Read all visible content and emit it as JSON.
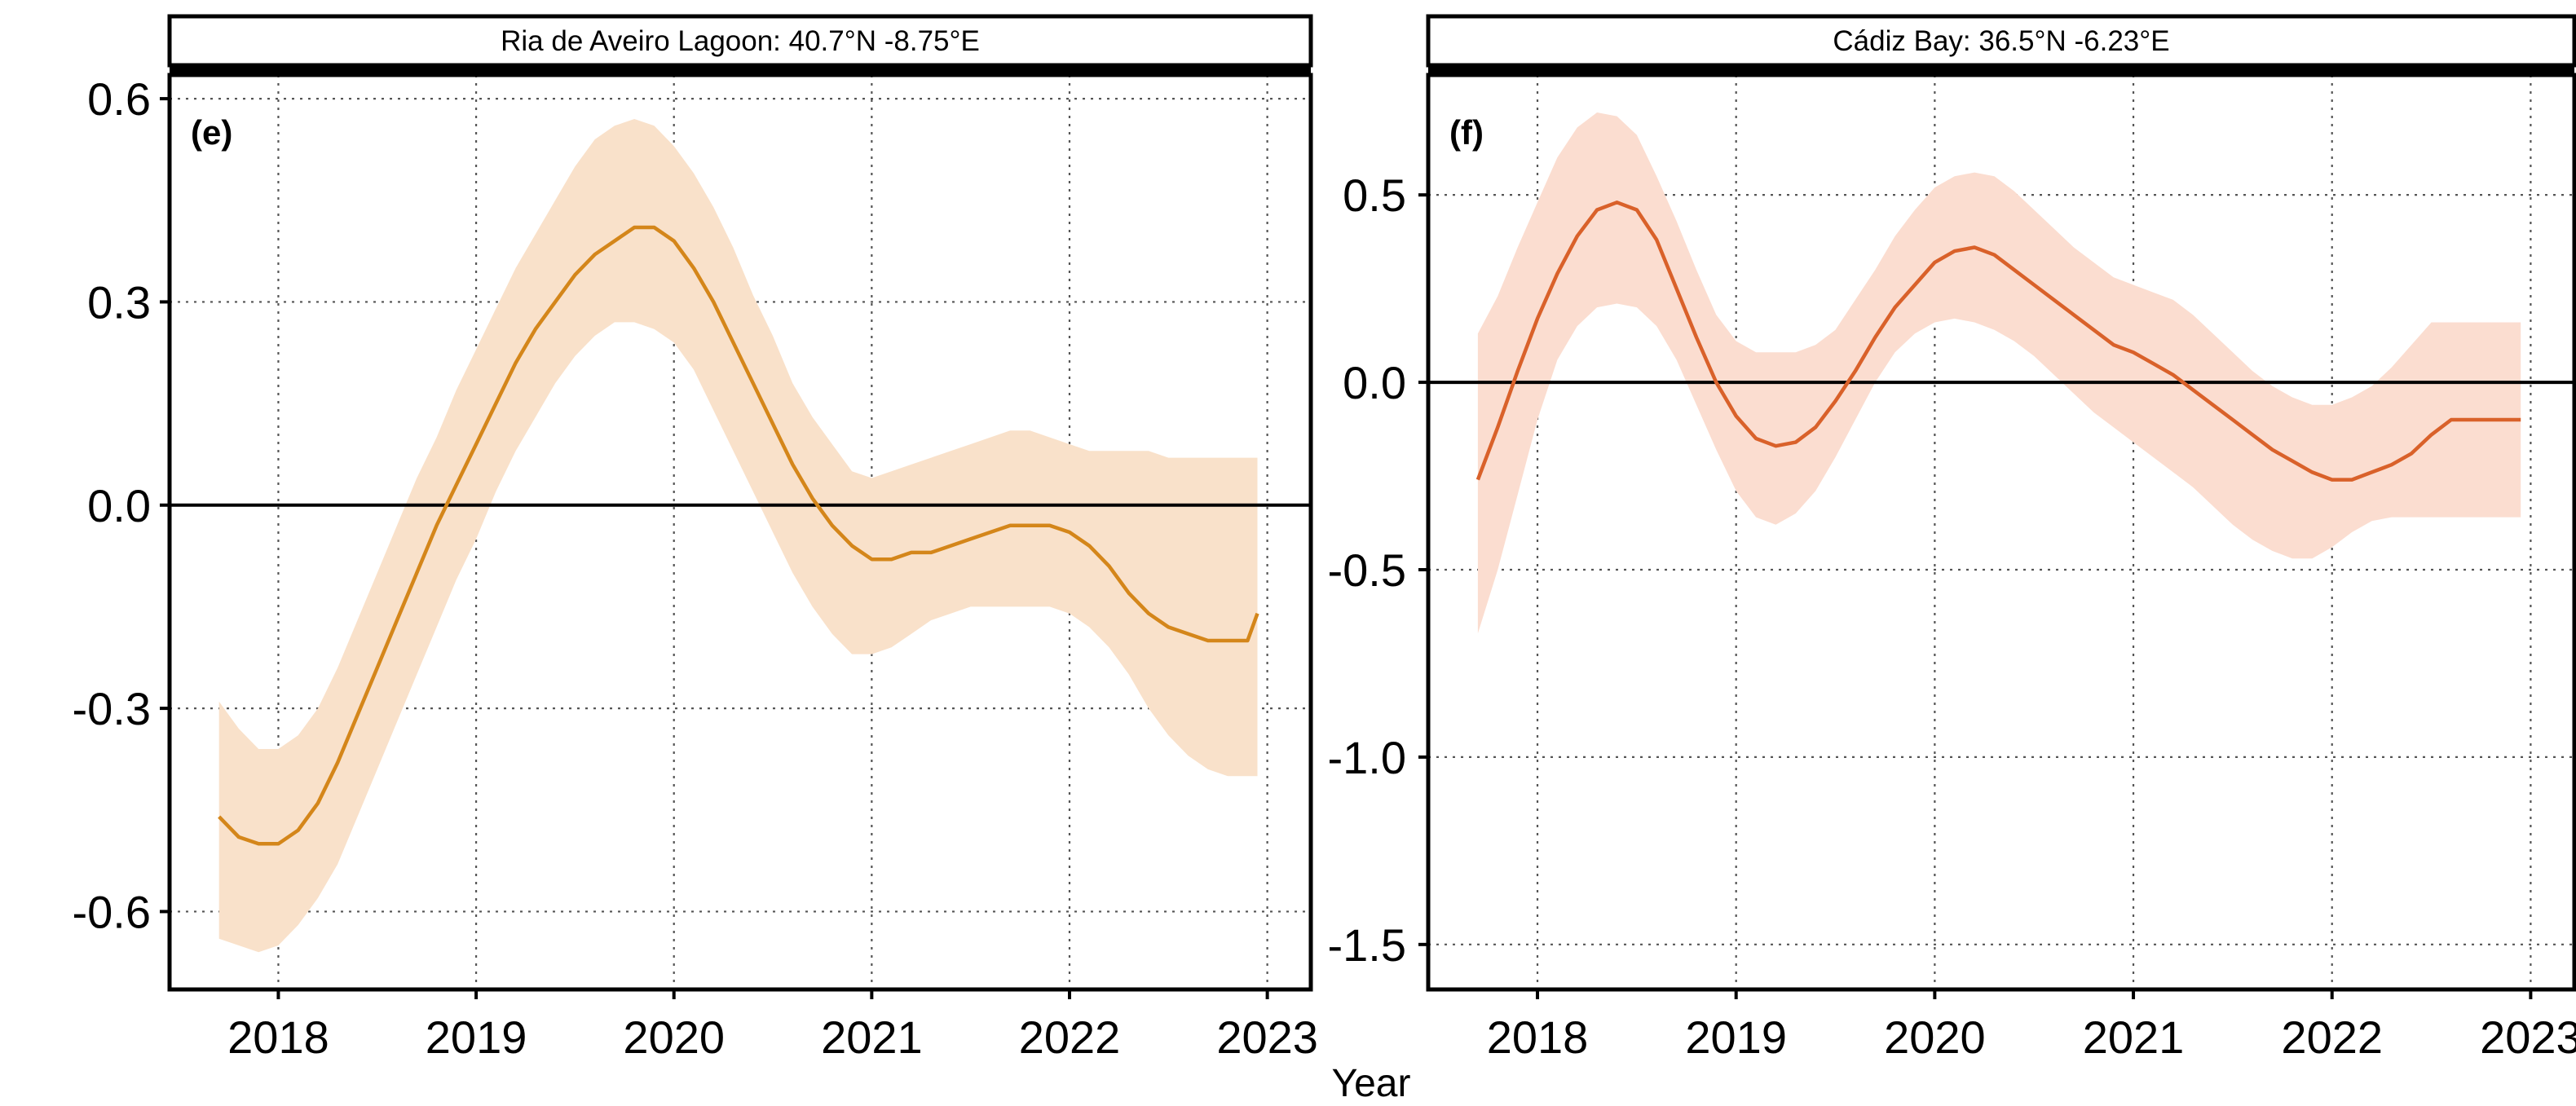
{
  "figure": {
    "x_axis_title": "Year"
  },
  "chart_data": [
    {
      "type": "line",
      "panel_tag": "(e)",
      "strip_title": "Ria de Aveiro Lagoon:  40.7°N -8.75°E",
      "xlabel": "Year",
      "ylabel": "",
      "xlim": [
        2017.45,
        2023.22
      ],
      "ylim": [
        -0.715,
        0.635
      ],
      "x_ticks": [
        2018,
        2019,
        2020,
        2021,
        2022,
        2023
      ],
      "x_tick_labels": [
        "2018",
        "2019",
        "2020",
        "2021",
        "2022",
        "2023"
      ],
      "y_ticks": [
        0.6,
        0.3,
        0.0,
        -0.3,
        -0.6
      ],
      "y_tick_labels": [
        "0.6",
        "0.3",
        "0.0",
        "-0.3",
        "-0.6"
      ],
      "grid": true,
      "reference_line": 0.0,
      "line_color": "#D4861A",
      "band_color": "#F9E1CA",
      "series": [
        {
          "x": [
            2017.7,
            2017.8,
            2017.9,
            2018.0,
            2018.1,
            2018.2,
            2018.3,
            2018.4,
            2018.5,
            2018.6,
            2018.7,
            2018.8,
            2018.9,
            2019.0,
            2019.1,
            2019.2,
            2019.3,
            2019.4,
            2019.5,
            2019.6,
            2019.7,
            2019.8,
            2019.9,
            2020.0,
            2020.1,
            2020.2,
            2020.3,
            2020.4,
            2020.5,
            2020.6,
            2020.7,
            2020.8,
            2020.9,
            2021.0,
            2021.1,
            2021.2,
            2021.3,
            2021.4,
            2021.5,
            2021.6,
            2021.7,
            2021.8,
            2021.9,
            2022.0,
            2022.1,
            2022.2,
            2022.3,
            2022.4,
            2022.5,
            2022.6,
            2022.7,
            2022.8,
            2022.9,
            2022.95
          ],
          "y": [
            -0.46,
            -0.49,
            -0.5,
            -0.5,
            -0.48,
            -0.44,
            -0.38,
            -0.31,
            -0.24,
            -0.17,
            -0.1,
            -0.03,
            0.03,
            0.09,
            0.15,
            0.21,
            0.26,
            0.3,
            0.34,
            0.37,
            0.39,
            0.41,
            0.41,
            0.39,
            0.35,
            0.3,
            0.24,
            0.18,
            0.12,
            0.06,
            0.01,
            -0.03,
            -0.06,
            -0.08,
            -0.08,
            -0.07,
            -0.07,
            -0.06,
            -0.05,
            -0.04,
            -0.03,
            -0.03,
            -0.03,
            -0.04,
            -0.06,
            -0.09,
            -0.13,
            -0.16,
            -0.18,
            -0.19,
            -0.2,
            -0.2,
            -0.2,
            -0.16
          ],
          "lower": [
            -0.64,
            -0.65,
            -0.66,
            -0.65,
            -0.62,
            -0.58,
            -0.53,
            -0.46,
            -0.39,
            -0.32,
            -0.25,
            -0.18,
            -0.11,
            -0.05,
            0.02,
            0.08,
            0.13,
            0.18,
            0.22,
            0.25,
            0.27,
            0.27,
            0.26,
            0.24,
            0.2,
            0.14,
            0.08,
            0.02,
            -0.04,
            -0.1,
            -0.15,
            -0.19,
            -0.22,
            -0.22,
            -0.21,
            -0.19,
            -0.17,
            -0.16,
            -0.15,
            -0.15,
            -0.15,
            -0.15,
            -0.15,
            -0.16,
            -0.18,
            -0.21,
            -0.25,
            -0.3,
            -0.34,
            -0.37,
            -0.39,
            -0.4,
            -0.4,
            -0.4
          ],
          "upper": [
            -0.29,
            -0.33,
            -0.36,
            -0.36,
            -0.34,
            -0.3,
            -0.24,
            -0.17,
            -0.1,
            -0.03,
            0.04,
            0.1,
            0.17,
            0.23,
            0.29,
            0.35,
            0.4,
            0.45,
            0.5,
            0.54,
            0.56,
            0.57,
            0.56,
            0.53,
            0.49,
            0.44,
            0.38,
            0.31,
            0.25,
            0.18,
            0.13,
            0.09,
            0.05,
            0.04,
            0.05,
            0.06,
            0.07,
            0.08,
            0.09,
            0.1,
            0.11,
            0.11,
            0.1,
            0.09,
            0.08,
            0.08,
            0.08,
            0.08,
            0.07,
            0.07,
            0.07,
            0.07,
            0.07,
            0.07
          ]
        }
      ]
    },
    {
      "type": "line",
      "panel_tag": "(f)",
      "strip_title": "Cádiz Bay: 36.5°N -6.23°E",
      "xlabel": "Year",
      "ylabel": "",
      "xlim": [
        2017.45,
        2023.22
      ],
      "ylim": [
        -1.62,
        0.82
      ],
      "x_ticks": [
        2018,
        2019,
        2020,
        2021,
        2022,
        2023
      ],
      "x_tick_labels": [
        "2018",
        "2019",
        "2020",
        "2021",
        "2022",
        "2023"
      ],
      "y_ticks": [
        0.5,
        0.0,
        -0.5,
        -1.0,
        -1.5
      ],
      "y_tick_labels": [
        "0.5",
        "0.0",
        "-0.5",
        "-1.0",
        "-1.5"
      ],
      "grid": true,
      "reference_line": 0.0,
      "line_color": "#D9612A",
      "band_color": "#FBDDD0",
      "series": [
        {
          "x": [
            2017.7,
            2017.8,
            2017.9,
            2018.0,
            2018.1,
            2018.2,
            2018.3,
            2018.4,
            2018.5,
            2018.6,
            2018.7,
            2018.8,
            2018.9,
            2019.0,
            2019.1,
            2019.2,
            2019.3,
            2019.4,
            2019.5,
            2019.6,
            2019.7,
            2019.8,
            2019.9,
            2020.0,
            2020.1,
            2020.2,
            2020.3,
            2020.4,
            2020.5,
            2020.6,
            2020.7,
            2020.8,
            2020.9,
            2021.0,
            2021.1,
            2021.2,
            2021.3,
            2021.4,
            2021.5,
            2021.6,
            2021.7,
            2021.8,
            2021.9,
            2022.0,
            2022.1,
            2022.2,
            2022.3,
            2022.4,
            2022.5,
            2022.6,
            2022.7,
            2022.8,
            2022.9,
            2022.95
          ],
          "y": [
            -0.26,
            -0.12,
            0.03,
            0.17,
            0.29,
            0.39,
            0.46,
            0.48,
            0.46,
            0.38,
            0.25,
            0.12,
            0.0,
            -0.09,
            -0.15,
            -0.17,
            -0.16,
            -0.12,
            -0.05,
            0.03,
            0.12,
            0.2,
            0.26,
            0.32,
            0.35,
            0.36,
            0.34,
            0.3,
            0.26,
            0.22,
            0.18,
            0.14,
            0.1,
            0.08,
            0.05,
            0.02,
            -0.02,
            -0.06,
            -0.1,
            -0.14,
            -0.18,
            -0.21,
            -0.24,
            -0.26,
            -0.26,
            -0.24,
            -0.22,
            -0.19,
            -0.14,
            -0.1,
            -0.1,
            -0.1,
            -0.1,
            -0.1
          ],
          "lower": [
            -0.67,
            -0.5,
            -0.3,
            -0.1,
            0.06,
            0.15,
            0.2,
            0.21,
            0.2,
            0.15,
            0.06,
            -0.06,
            -0.18,
            -0.29,
            -0.36,
            -0.38,
            -0.35,
            -0.29,
            -0.2,
            -0.1,
            0.0,
            0.08,
            0.13,
            0.16,
            0.17,
            0.16,
            0.14,
            0.11,
            0.07,
            0.02,
            -0.03,
            -0.08,
            -0.12,
            -0.16,
            -0.2,
            -0.24,
            -0.28,
            -0.33,
            -0.38,
            -0.42,
            -0.45,
            -0.47,
            -0.47,
            -0.44,
            -0.4,
            -0.37,
            -0.36,
            -0.36,
            -0.36,
            -0.36,
            -0.36,
            -0.36,
            -0.36,
            -0.36
          ],
          "upper": [
            0.13,
            0.23,
            0.36,
            0.48,
            0.6,
            0.68,
            0.72,
            0.71,
            0.66,
            0.55,
            0.43,
            0.3,
            0.18,
            0.11,
            0.08,
            0.08,
            0.08,
            0.1,
            0.14,
            0.22,
            0.3,
            0.39,
            0.46,
            0.52,
            0.55,
            0.56,
            0.55,
            0.51,
            0.46,
            0.41,
            0.36,
            0.32,
            0.28,
            0.26,
            0.24,
            0.22,
            0.18,
            0.13,
            0.08,
            0.03,
            -0.01,
            -0.04,
            -0.06,
            -0.06,
            -0.04,
            -0.01,
            0.04,
            0.1,
            0.16,
            0.16,
            0.16,
            0.16,
            0.16,
            0.16
          ]
        }
      ]
    }
  ]
}
